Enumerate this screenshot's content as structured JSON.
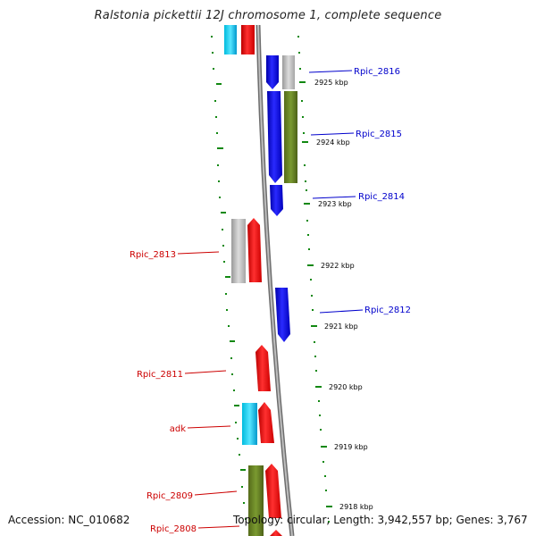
{
  "title": "Ralstonia pickettii 12J chromosome 1, complete sequence",
  "footer": {
    "accession": "Accession: NC_010682",
    "stats": "Topology: circular; Length: 3,942,557 bp; Genes: 3,767"
  },
  "scale": {
    "unit": "kbp",
    "ticks": [
      {
        "label": "2925 kbp"
      },
      {
        "label": "2924 kbp"
      },
      {
        "label": "2923 kbp"
      },
      {
        "label": "2922 kbp"
      },
      {
        "label": "2921 kbp"
      },
      {
        "label": "2920 kbp"
      },
      {
        "label": "2919 kbp"
      },
      {
        "label": "2918 kbp"
      }
    ]
  },
  "genes": {
    "forward": [
      "Rpic_2816",
      "Rpic_2815",
      "Rpic_2814",
      "Rpic_2812"
    ],
    "reverse": [
      "Rpic_2813",
      "Rpic_2811",
      "adk",
      "Rpic_2809",
      "Rpic_2808"
    ]
  },
  "colors": {
    "forward_gene": "#0000ee",
    "reverse_gene": "#ee0000",
    "cyan_feature": "#22ccee",
    "olive_feature": "#6b8e23",
    "gray_feature": "#bbbbbb",
    "tick_green": "#118811",
    "backbone": "#888888"
  }
}
